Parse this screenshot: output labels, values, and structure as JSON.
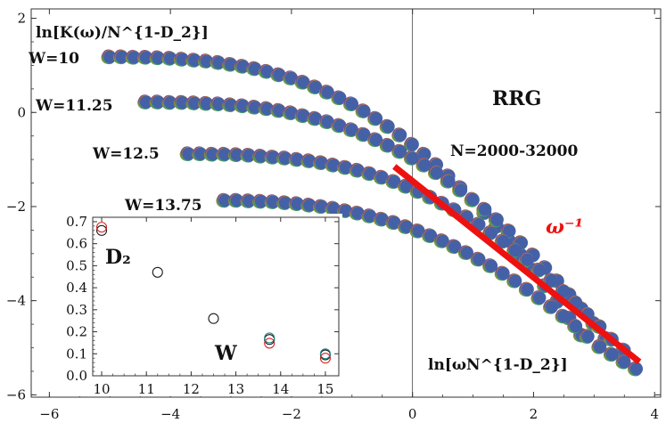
{
  "chart_data": [
    {
      "type": "scatter",
      "title": "RRG",
      "subtitle": "N=2000-32000",
      "ylabel": "ln[K(ω)/N^{1-D_2}]",
      "xlabel": "ln[ωN^{1-D_2}]",
      "xlim": [
        -6.3,
        4.1
      ],
      "ylim": [
        -6.05,
        2.2
      ],
      "xticks": [
        "−6",
        "−4",
        "−2",
        "0",
        "2",
        "4"
      ],
      "yticks": [
        "−6",
        "−4",
        "−2",
        "0",
        "2"
      ],
      "grid": false,
      "vertical_line_at_x": 0,
      "series": [
        {
          "name": "W=10",
          "x": [
            -5.0,
            -4.8,
            -4.6,
            -4.4,
            -4.2,
            -4.0,
            -3.8,
            -3.6,
            -3.4,
            -3.2,
            -3.0,
            -2.8,
            -2.6,
            -2.4,
            -2.2,
            -2.0,
            -1.8,
            -1.6,
            -1.4,
            -1.2,
            -1.0,
            -0.8,
            -0.6,
            -0.4,
            -0.2,
            0.0,
            0.2,
            0.4,
            0.6,
            0.8,
            1.0,
            1.2,
            1.4,
            1.6,
            1.8,
            2.0,
            2.2,
            2.4,
            2.6,
            2.8
          ],
          "y": [
            1.18,
            1.18,
            1.17,
            1.17,
            1.16,
            1.15,
            1.13,
            1.11,
            1.09,
            1.06,
            1.02,
            0.98,
            0.93,
            0.87,
            0.8,
            0.73,
            0.64,
            0.54,
            0.43,
            0.31,
            0.18,
            0.03,
            -0.13,
            -0.3,
            -0.48,
            -0.68,
            -0.89,
            -1.11,
            -1.35,
            -1.6,
            -1.86,
            -2.13,
            -2.42,
            -2.72,
            -3.03,
            -3.35,
            -3.68,
            -4.02,
            -4.37,
            -4.73
          ]
        },
        {
          "name": "W=11.25",
          "x": [
            -4.4,
            -4.2,
            -4.0,
            -3.8,
            -3.6,
            -3.4,
            -3.2,
            -3.0,
            -2.8,
            -2.6,
            -2.4,
            -2.2,
            -2.0,
            -1.8,
            -1.6,
            -1.4,
            -1.2,
            -1.0,
            -0.8,
            -0.6,
            -0.4,
            -0.2,
            0.0,
            0.2,
            0.4,
            0.6,
            0.8,
            1.0,
            1.2,
            1.4,
            1.6,
            1.8,
            2.0,
            2.2,
            2.4,
            2.6,
            2.8,
            3.0,
            3.2
          ],
          "y": [
            0.22,
            0.22,
            0.21,
            0.21,
            0.2,
            0.19,
            0.18,
            0.16,
            0.14,
            0.11,
            0.08,
            0.04,
            -0.01,
            -0.07,
            -0.13,
            -0.2,
            -0.28,
            -0.37,
            -0.47,
            -0.58,
            -0.7,
            -0.83,
            -0.97,
            -1.12,
            -1.28,
            -1.46,
            -1.65,
            -1.85,
            -2.06,
            -2.28,
            -2.52,
            -2.77,
            -3.03,
            -3.3,
            -3.58,
            -3.87,
            -4.17,
            -4.48,
            -4.8
          ]
        },
        {
          "name": "W=12.5",
          "x": [
            -3.7,
            -3.5,
            -3.3,
            -3.1,
            -2.9,
            -2.7,
            -2.5,
            -2.3,
            -2.1,
            -1.9,
            -1.7,
            -1.5,
            -1.3,
            -1.1,
            -0.9,
            -0.7,
            -0.5,
            -0.3,
            -0.1,
            0.1,
            0.3,
            0.5,
            0.7,
            0.9,
            1.1,
            1.3,
            1.5,
            1.7,
            1.9,
            2.1,
            2.3,
            2.5,
            2.7,
            2.9,
            3.1,
            3.3,
            3.5
          ],
          "y": [
            -0.88,
            -0.88,
            -0.89,
            -0.89,
            -0.9,
            -0.91,
            -0.93,
            -0.95,
            -0.97,
            -1.0,
            -1.03,
            -1.07,
            -1.12,
            -1.17,
            -1.23,
            -1.3,
            -1.38,
            -1.47,
            -1.57,
            -1.68,
            -1.8,
            -1.93,
            -2.07,
            -2.22,
            -2.38,
            -2.56,
            -2.74,
            -2.93,
            -3.13,
            -3.35,
            -3.57,
            -3.8,
            -4.04,
            -4.29,
            -4.55,
            -4.82,
            -5.05
          ]
        },
        {
          "name": "W=13.75",
          "x": [
            -3.1,
            -2.9,
            -2.7,
            -2.5,
            -2.3,
            -2.1,
            -1.9,
            -1.7,
            -1.5,
            -1.3,
            -1.1,
            -0.9,
            -0.7,
            -0.5,
            -0.3,
            -0.1,
            0.1,
            0.3,
            0.5,
            0.7,
            0.9,
            1.1,
            1.3,
            1.5,
            1.7,
            1.9,
            2.1,
            2.3,
            2.5,
            2.7,
            2.9,
            3.1,
            3.3,
            3.5,
            3.7
          ],
          "y": [
            -1.87,
            -1.87,
            -1.88,
            -1.89,
            -1.9,
            -1.92,
            -1.94,
            -1.97,
            -2.0,
            -2.04,
            -2.09,
            -2.14,
            -2.2,
            -2.27,
            -2.34,
            -2.43,
            -2.52,
            -2.62,
            -2.73,
            -2.85,
            -2.98,
            -3.12,
            -3.26,
            -3.42,
            -3.58,
            -3.76,
            -3.94,
            -4.13,
            -4.33,
            -4.54,
            -4.76,
            -4.98,
            -5.14,
            -5.3,
            -5.45
          ]
        }
      ],
      "series_labels": [
        "W=10",
        "W=11.25",
        "W=12.5",
        "W=13.75"
      ],
      "fit_line": {
        "label": "ω⁻¹",
        "x": [
          -0.3,
          3.75
        ],
        "y": [
          -1.15,
          -5.3
        ],
        "color": "#ee1111"
      },
      "marker_colors": [
        "#8b8f39",
        "#7a4f8d",
        "#3f9d6b",
        "#c57f2b",
        "#4461a8"
      ]
    },
    {
      "type": "scatter",
      "ylabel": "D₂",
      "xlabel": "W",
      "xlim": [
        9.8,
        15.3
      ],
      "ylim": [
        0.0,
        0.72
      ],
      "xticks": [
        "10",
        "11",
        "12",
        "13",
        "14",
        "15"
      ],
      "yticks": [
        "0.0",
        "0.1",
        "0.2",
        "0.3",
        "0.4",
        "0.5",
        "0.6",
        "0.7"
      ],
      "series": [
        {
          "x": [
            10.0,
            11.25,
            12.5,
            13.75,
            15.0
          ],
          "y": [
            0.66,
            0.47,
            0.26,
            0.165,
            0.095
          ],
          "color": "#1a1a1a"
        },
        {
          "x": [
            10.0,
            13.75,
            15.0
          ],
          "y": [
            0.675,
            0.148,
            0.08
          ],
          "color": "#dd2222"
        },
        {
          "x": [
            13.75,
            15.0
          ],
          "y": [
            0.172,
            0.1
          ],
          "color": "#1e8a8a"
        }
      ]
    }
  ]
}
